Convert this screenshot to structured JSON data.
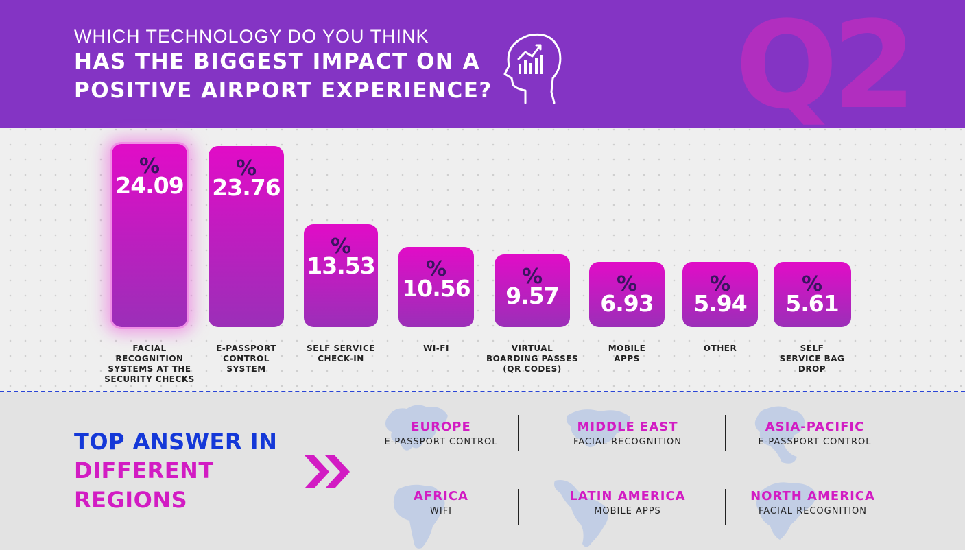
{
  "header": {
    "question_line1": "WHICH TECHNOLOGY DO YOU THINK",
    "question_line2": "HAS THE BIGGEST IMPACT ON A",
    "question_line3": "POSITIVE AIRPORT EXPERIENCE?",
    "badge": "Q2",
    "icon": "head-with-chart-icon",
    "colors": {
      "background": "#8434c4",
      "badge": "#b12ebf"
    }
  },
  "chart_data": {
    "type": "bar",
    "categories": [
      "FACIAL RECOGNITION SYSTEMS AT THE SECURITY CHECKS",
      "E-PASSPORT CONTROL SYSTEM",
      "SELF SERVICE CHECK-IN",
      "WI-FI",
      "VIRTUAL BOARDING PASSES (QR CODES)",
      "MOBILE APPS",
      "OTHER",
      "SELF SERVICE BAG DROP"
    ],
    "category_label_lines": [
      [
        "FACIAL",
        "RECOGNITION",
        "SYSTEMS AT THE",
        "SECURITY CHECKS"
      ],
      [
        "E-PASSPORT",
        "CONTROL",
        "SYSTEM"
      ],
      [
        "SELF SERVICE",
        "CHECK-IN"
      ],
      [
        "WI-FI"
      ],
      [
        "VIRTUAL",
        "BOARDING PASSES",
        "(QR CODES)"
      ],
      [
        "MOBILE",
        "APPS"
      ],
      [
        "OTHER"
      ],
      [
        "SELF",
        "SERVICE BAG",
        "DROP"
      ]
    ],
    "values": [
      24.09,
      23.76,
      13.53,
      10.56,
      9.57,
      6.93,
      5.94,
      5.61
    ],
    "value_labels": [
      "24.09",
      "23.76",
      "13.53",
      "10.56",
      "9.57",
      "6.93",
      "5.94",
      "5.61"
    ],
    "unit_symbol": "%",
    "highlight_index": 0,
    "title": "",
    "xlabel": "",
    "ylabel": "",
    "grid": false,
    "colors": {
      "bar_top": "#e10cc7",
      "bar_bottom": "#9b2fb8",
      "percent_sign": "#3a1560"
    }
  },
  "regions": {
    "title_line1": "TOP ANSWER IN",
    "title_line2": "DIFFERENT",
    "title_line3": "REGIONS",
    "arrow_icon": "double-chevron-right-icon",
    "items": [
      {
        "name": "EUROPE",
        "answer": "E-PASSPORT CONTROL",
        "map_icon": "europe-map-icon"
      },
      {
        "name": "MIDDLE EAST",
        "answer": "FACIAL RECOGNITION",
        "map_icon": "middle-east-map-icon"
      },
      {
        "name": "ASIA-PACIFIC",
        "answer": "E-PASSPORT CONTROL",
        "map_icon": "asia-pacific-map-icon"
      },
      {
        "name": "AFRICA",
        "answer": "WIFI",
        "map_icon": "africa-map-icon"
      },
      {
        "name": "LATIN AMERICA",
        "answer": "MOBILE APPS",
        "map_icon": "latin-america-map-icon"
      },
      {
        "name": "NORTH AMERICA",
        "answer": "FACIAL RECOGNITION",
        "map_icon": "north-america-map-icon"
      }
    ],
    "colors": {
      "title_blue": "#1438d8",
      "title_magenta": "#d21cc3",
      "region_name": "#d21cc3",
      "divider": "#2a45d6"
    }
  }
}
